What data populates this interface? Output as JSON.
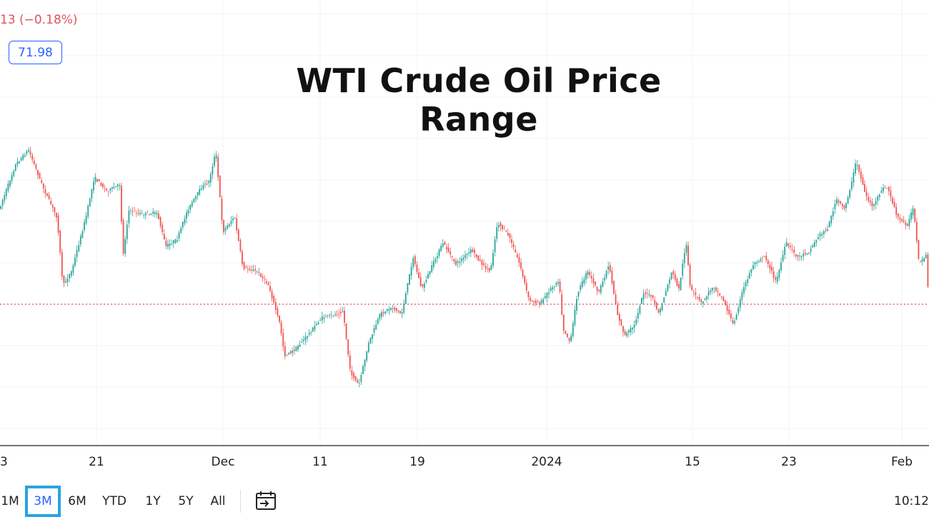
{
  "header": {
    "change_text": "13 (−0.18%)",
    "price_badge": "71.98"
  },
  "chart_data": {
    "type": "candlestick",
    "title": "WTI Crude Oil Price Range",
    "x_tick_labels": [
      "3",
      "21",
      "Dec",
      "11",
      "19",
      "2024",
      "15",
      "23",
      "Feb"
    ],
    "reference_line": {
      "style": "dotted",
      "color": "#e0525a"
    },
    "trend_outline": [
      [
        0,
        290
      ],
      [
        22,
        230
      ],
      [
        40,
        210
      ],
      [
        60,
        262
      ],
      [
        80,
        305
      ],
      [
        88,
        400
      ],
      [
        100,
        380
      ],
      [
        120,
        305
      ],
      [
        132,
        248
      ],
      [
        150,
        268
      ],
      [
        168,
        258
      ],
      [
        172,
        360
      ],
      [
        180,
        295
      ],
      [
        200,
        300
      ],
      [
        220,
        298
      ],
      [
        232,
        345
      ],
      [
        248,
        335
      ],
      [
        262,
        295
      ],
      [
        282,
        262
      ],
      [
        292,
        255
      ],
      [
        302,
        212
      ],
      [
        312,
        325
      ],
      [
        328,
        303
      ],
      [
        340,
        375
      ],
      [
        360,
        380
      ],
      [
        376,
        400
      ],
      [
        392,
        455
      ],
      [
        398,
        498
      ],
      [
        412,
        490
      ],
      [
        430,
        470
      ],
      [
        450,
        445
      ],
      [
        470,
        440
      ],
      [
        480,
        435
      ],
      [
        490,
        520
      ],
      [
        502,
        540
      ],
      [
        516,
        480
      ],
      [
        532,
        440
      ],
      [
        548,
        430
      ],
      [
        562,
        440
      ],
      [
        578,
        360
      ],
      [
        590,
        405
      ],
      [
        608,
        365
      ],
      [
        620,
        340
      ],
      [
        638,
        370
      ],
      [
        660,
        350
      ],
      [
        676,
        372
      ],
      [
        686,
        380
      ],
      [
        696,
        312
      ],
      [
        712,
        330
      ],
      [
        728,
        372
      ],
      [
        740,
        420
      ],
      [
        756,
        425
      ],
      [
        770,
        405
      ],
      [
        782,
        392
      ],
      [
        788,
        460
      ],
      [
        798,
        480
      ],
      [
        808,
        410
      ],
      [
        822,
        380
      ],
      [
        838,
        410
      ],
      [
        852,
        370
      ],
      [
        864,
        440
      ],
      [
        874,
        470
      ],
      [
        888,
        455
      ],
      [
        900,
        410
      ],
      [
        912,
        415
      ],
      [
        922,
        440
      ],
      [
        940,
        380
      ],
      [
        950,
        405
      ],
      [
        960,
        338
      ],
      [
        966,
        405
      ],
      [
        982,
        425
      ],
      [
        998,
        400
      ],
      [
        1012,
        420
      ],
      [
        1026,
        455
      ],
      [
        1040,
        405
      ],
      [
        1054,
        370
      ],
      [
        1070,
        358
      ],
      [
        1086,
        395
      ],
      [
        1100,
        340
      ],
      [
        1116,
        360
      ],
      [
        1132,
        352
      ],
      [
        1146,
        330
      ],
      [
        1158,
        320
      ],
      [
        1170,
        280
      ],
      [
        1182,
        292
      ],
      [
        1192,
        255
      ],
      [
        1198,
        225
      ],
      [
        1212,
        275
      ],
      [
        1222,
        290
      ],
      [
        1234,
        265
      ],
      [
        1242,
        262
      ],
      [
        1256,
        305
      ],
      [
        1270,
        315
      ],
      [
        1278,
        290
      ],
      [
        1286,
        370
      ],
      [
        1296,
        358
      ],
      [
        1300,
        430
      ]
    ]
  },
  "toolbar": {
    "ranges": [
      "1M",
      "3M",
      "6M",
      "YTD",
      "1Y",
      "5Y",
      "All"
    ],
    "active_range": "3M",
    "date_range_icon": "calendar-goto-icon",
    "clock": "10:12"
  },
  "colors": {
    "up": "#26a69a",
    "down": "#ef5350",
    "grid": "#f0f3fa",
    "axis": "#222222",
    "accent": "#2962ff",
    "active_border": "#29a3e0"
  }
}
